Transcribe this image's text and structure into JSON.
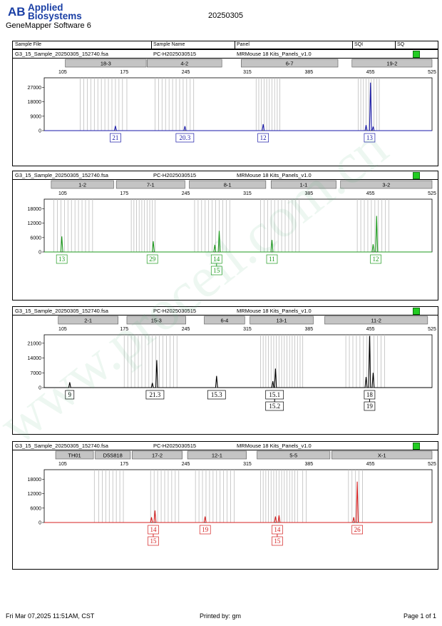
{
  "header": {
    "logo_mark": "AB",
    "brand_line1": "Applied",
    "brand_line2": "Biosystems",
    "app_name": "GeneMapper Software 6",
    "date": "20250305"
  },
  "table_header": {
    "sample_file": "Sample File",
    "sample_name": "Sample Name",
    "panel": "Panel",
    "sqi": "SQI",
    "sq": "SQ"
  },
  "watermark": "www.proceil.com.cn",
  "footer": {
    "timestamp": "Fri Mar 07,2025 11:51AM, CST",
    "printed_by": "Printed by: gm",
    "page": "Page 1 of 1"
  },
  "chart_data": [
    {
      "type": "line",
      "sample_file": "G3_15_Sample_20250305_152740.fsa",
      "sample_name": "PC-H2025030515",
      "panel": "MRMouse 18 Kits_Panels_v1.0",
      "sq_color": "#22cc22",
      "dye_color": "#1a1aa8",
      "xlim": [
        84,
        525
      ],
      "x_ticks": [
        105,
        175,
        245,
        315,
        385,
        455,
        525
      ],
      "ylim": [
        0,
        33000
      ],
      "y_ticks": [
        0,
        9000,
        18000,
        27000
      ],
      "markers": [
        {
          "label": "18-3",
          "start": 108,
          "end": 200
        },
        {
          "label": "4-2",
          "start": 201,
          "end": 286
        },
        {
          "label": "6-7",
          "start": 308,
          "end": 418
        },
        {
          "label": "19-2",
          "start": 434,
          "end": 581
        }
      ],
      "bins": [
        125,
        129,
        133,
        137,
        141,
        145,
        149,
        153,
        157,
        161,
        165,
        169,
        173,
        178,
        210,
        214,
        218,
        222,
        226,
        230,
        234,
        238,
        242,
        246,
        250,
        254,
        325,
        328,
        331,
        334,
        337,
        340,
        343,
        346,
        349,
        352,
        441,
        444,
        447,
        450,
        453,
        456,
        459,
        462,
        465
      ],
      "peaks": [
        {
          "x": 165,
          "h": 3000
        },
        {
          "x": 244,
          "h": 2800
        },
        {
          "x": 333,
          "h": 4000
        },
        {
          "x": 450,
          "h": 3500
        },
        {
          "x": 455,
          "h": 30000
        },
        {
          "x": 458,
          "h": 2500
        }
      ],
      "alleles": [
        {
          "x": 165,
          "labels": [
            "21"
          ]
        },
        {
          "x": 244,
          "labels": [
            "20.3"
          ]
        },
        {
          "x": 333,
          "labels": [
            "12"
          ]
        },
        {
          "x": 454,
          "labels": [
            "13"
          ]
        }
      ]
    },
    {
      "type": "line",
      "sample_file": "G3_15_Sample_20250305_152740.fsa",
      "sample_name": "PC-H2025030515",
      "panel": "MRMouse 18 Kits_Panels_v1.0",
      "sq_color": "#22cc22",
      "dye_color": "#1e9a1e",
      "xlim": [
        84,
        525
      ],
      "x_ticks": [
        105,
        175,
        245,
        315,
        385,
        455,
        525
      ],
      "ylim": [
        0,
        22000
      ],
      "y_ticks": [
        0,
        6000,
        12000,
        18000
      ],
      "markers": [
        {
          "label": "1-2",
          "start": 92,
          "end": 163
        },
        {
          "label": "7-1",
          "start": 166,
          "end": 244
        },
        {
          "label": "8-1",
          "start": 249,
          "end": 336
        },
        {
          "label": "1-1",
          "start": 342,
          "end": 416
        },
        {
          "label": "3-2",
          "start": 421,
          "end": 546
        }
      ],
      "bins": [
        95,
        99,
        103,
        107,
        111,
        115,
        119,
        123,
        127,
        131,
        135,
        139,
        183,
        186,
        189,
        192,
        195,
        198,
        201,
        204,
        207,
        210,
        255,
        259,
        263,
        267,
        271,
        275,
        279,
        283,
        287,
        291,
        295,
        330,
        334,
        338,
        342,
        346,
        350,
        354,
        358,
        362,
        366,
        370,
        374,
        440,
        444,
        448,
        452,
        456,
        460,
        464,
        468,
        472,
        476
      ],
      "peaks": [
        {
          "x": 104,
          "h": 6500
        },
        {
          "x": 208,
          "h": 4500
        },
        {
          "x": 278,
          "h": 3000
        },
        {
          "x": 283,
          "h": 8800
        },
        {
          "x": 343,
          "h": 5000
        },
        {
          "x": 458,
          "h": 3200
        },
        {
          "x": 462,
          "h": 15000
        }
      ],
      "alleles": [
        {
          "x": 104,
          "labels": [
            "13"
          ]
        },
        {
          "x": 207,
          "labels": [
            "29"
          ]
        },
        {
          "x": 280,
          "labels": [
            "14",
            "15"
          ]
        },
        {
          "x": 343,
          "labels": [
            "11"
          ]
        },
        {
          "x": 461,
          "labels": [
            "12"
          ]
        }
      ]
    },
    {
      "type": "line",
      "sample_file": "G3_15_Sample_20250305_152740.fsa",
      "sample_name": "PC-H2025030515",
      "panel": "MRMouse 18 Kits_Panels_v1.0",
      "sq_color": "#22cc22",
      "dye_color": "#000000",
      "xlim": [
        84,
        525
      ],
      "x_ticks": [
        105,
        175,
        245,
        315,
        385,
        455,
        525
      ],
      "ylim": [
        0,
        25000
      ],
      "y_ticks": [
        0,
        7000,
        14000,
        21000
      ],
      "markers": [
        {
          "label": "2-1",
          "start": 100,
          "end": 168
        },
        {
          "label": "15-3",
          "start": 178,
          "end": 245
        },
        {
          "label": "6-4",
          "start": 266,
          "end": 312
        },
        {
          "label": "13-1",
          "start": 318,
          "end": 390
        },
        {
          "label": "11-2",
          "start": 403,
          "end": 520
        }
      ],
      "bins": [
        175,
        179,
        183,
        187,
        191,
        195,
        199,
        203,
        207,
        211,
        215,
        219,
        223,
        227,
        231,
        235,
        330,
        333,
        336,
        339,
        342,
        345,
        348,
        351,
        354,
        357,
        360,
        363,
        366,
        369,
        372,
        375,
        378,
        427,
        431,
        435,
        439,
        443,
        447,
        451,
        455,
        459,
        463,
        467,
        471
      ],
      "peaks": [
        {
          "x": 113,
          "h": 2500
        },
        {
          "x": 207,
          "h": 2200
        },
        {
          "x": 212,
          "h": 13000
        },
        {
          "x": 280,
          "h": 5500
        },
        {
          "x": 344,
          "h": 3000
        },
        {
          "x": 347,
          "h": 9000
        },
        {
          "x": 450,
          "h": 5000
        },
        {
          "x": 454,
          "h": 24500
        },
        {
          "x": 458,
          "h": 7000
        }
      ],
      "alleles": [
        {
          "x": 113,
          "labels": [
            "9"
          ]
        },
        {
          "x": 210,
          "labels": [
            "21.3"
          ]
        },
        {
          "x": 280,
          "labels": [
            "15.3"
          ]
        },
        {
          "x": 346,
          "labels": [
            "15.1",
            "15.2"
          ]
        },
        {
          "x": 454,
          "labels": [
            "18",
            "19"
          ]
        }
      ]
    },
    {
      "type": "line",
      "sample_file": "G3_15_Sample_20250305_152740.fsa",
      "sample_name": "PC-H2025030515",
      "panel": "MRMouse 18 Kits_Panels_v1.0",
      "sq_color": "#22cc22",
      "dye_color": "#d42020",
      "xlim": [
        84,
        525
      ],
      "x_ticks": [
        105,
        175,
        245,
        315,
        385,
        455,
        525
      ],
      "ylim": [
        0,
        22000
      ],
      "y_ticks": [
        0,
        6000,
        12000,
        18000
      ],
      "markers": [
        {
          "label": "TH01",
          "start": 97,
          "end": 140
        },
        {
          "label": "D5S818",
          "start": 142,
          "end": 182
        },
        {
          "label": "17-2",
          "start": 184,
          "end": 241
        },
        {
          "label": "12-1",
          "start": 247,
          "end": 314
        },
        {
          "label": "5-5",
          "start": 326,
          "end": 409
        },
        {
          "label": "X-1",
          "start": 411,
          "end": 556
        }
      ],
      "bins": [
        141,
        146,
        150,
        154,
        158,
        162,
        166,
        170,
        174,
        205,
        209,
        213,
        217,
        221,
        225,
        229,
        233,
        237,
        256,
        260,
        264,
        268,
        272,
        276,
        280,
        284,
        288,
        292,
        296,
        300,
        330,
        333,
        336,
        339,
        342,
        345,
        348,
        351,
        354,
        357,
        360,
        363,
        366,
        369,
        372,
        378,
        382,
        430,
        434,
        438,
        442,
        446
      ],
      "peaks": [
        {
          "x": 206,
          "h": 2200
        },
        {
          "x": 210,
          "h": 5000
        },
        {
          "x": 267,
          "h": 2500
        },
        {
          "x": 347,
          "h": 2500
        },
        {
          "x": 351,
          "h": 3000
        },
        {
          "x": 436,
          "h": 2200
        },
        {
          "x": 440,
          "h": 17000
        }
      ],
      "alleles": [
        {
          "x": 208,
          "labels": [
            "14",
            "15"
          ]
        },
        {
          "x": 267,
          "labels": [
            "19"
          ]
        },
        {
          "x": 349,
          "labels": [
            "14",
            "15"
          ]
        },
        {
          "x": 440,
          "labels": [
            "26"
          ]
        }
      ]
    }
  ]
}
